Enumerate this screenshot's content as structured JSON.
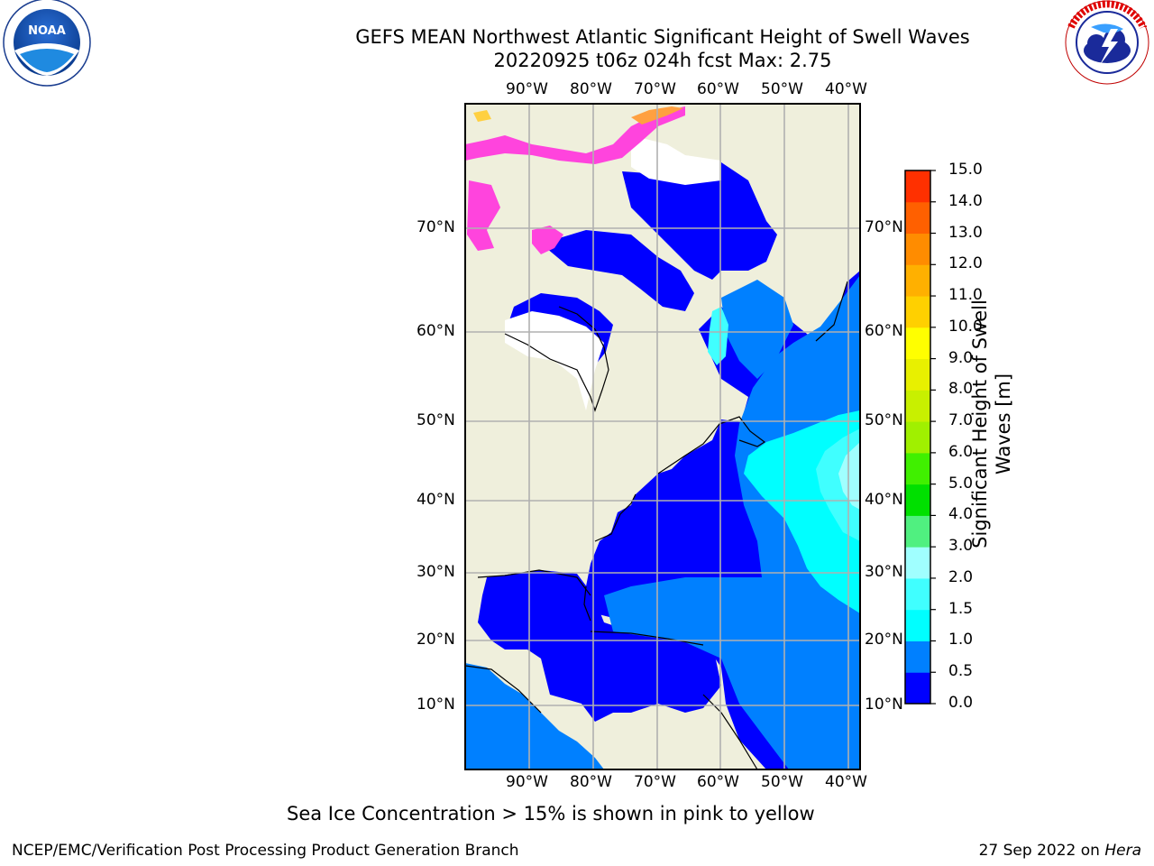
{
  "header": {
    "title_line1": "GEFS MEAN Northwest Atlantic Significant Height of Swell Waves",
    "title_line2": "20220925 t06z 024h fcst   Max: 2.75"
  },
  "logos": {
    "noaa": {
      "center_text": "NOAA",
      "ring_text": "NATIONAL OCEANIC AND ATMOSPHERIC ADMINISTRATION · U.S. DEPARTMENT OF COMMERCE"
    },
    "nws": {
      "ring_text": "NATIONAL WEATHER SERVICE"
    }
  },
  "map": {
    "lon_labels": [
      "90°W",
      "80°W",
      "70°W",
      "60°W",
      "50°W",
      "40°W"
    ],
    "lat_labels": [
      "70°N",
      "60°N",
      "50°N",
      "40°N",
      "30°N",
      "20°N",
      "10°N"
    ],
    "colors": {
      "land": "#efefdc",
      "ocean_low": "#0000ff",
      "ocean_mid": "#0080ff",
      "ocean_high": "#00ffff",
      "ice": "#ff44dd",
      "grid": "#b0b0b0"
    }
  },
  "colorbar": {
    "title": "Significant Height of Swell Waves [m]",
    "ticks": [
      "0.0",
      "0.5",
      "1.0",
      "1.5",
      "2.0",
      "3.0",
      "4.0",
      "5.0",
      "6.0",
      "7.0",
      "8.0",
      "9.0",
      "10.0",
      "11.0",
      "12.0",
      "13.0",
      "14.0",
      "15.0"
    ],
    "colors": [
      "#0000ff",
      "#0080ff",
      "#00ffff",
      "#40ffff",
      "#a0ffff",
      "#50f080",
      "#00e000",
      "#40f000",
      "#a0f000",
      "#c8f000",
      "#e8f000",
      "#ffff00",
      "#ffd000",
      "#ffb000",
      "#ff8c00",
      "#ff6000",
      "#ff3000",
      "#ff0000"
    ]
  },
  "notes": {
    "sea_ice": "Sea Ice Concentration > 15% is shown in pink to yellow"
  },
  "footer": {
    "left": "NCEP/EMC/Verification Post Processing Product Generation Branch",
    "right_prefix": "27 Sep 2022 on ",
    "right_host": "Hera"
  }
}
